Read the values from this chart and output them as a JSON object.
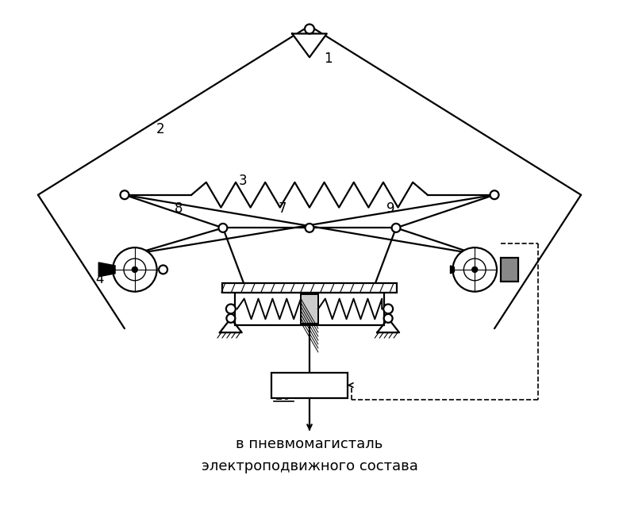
{
  "bg_color": "#ffffff",
  "line_color": "#000000",
  "figsize": [
    7.8,
    6.62
  ],
  "dpi": 100,
  "bottom_text1": "в пневмомагисталь",
  "bottom_text2": "электроподвижного состава"
}
